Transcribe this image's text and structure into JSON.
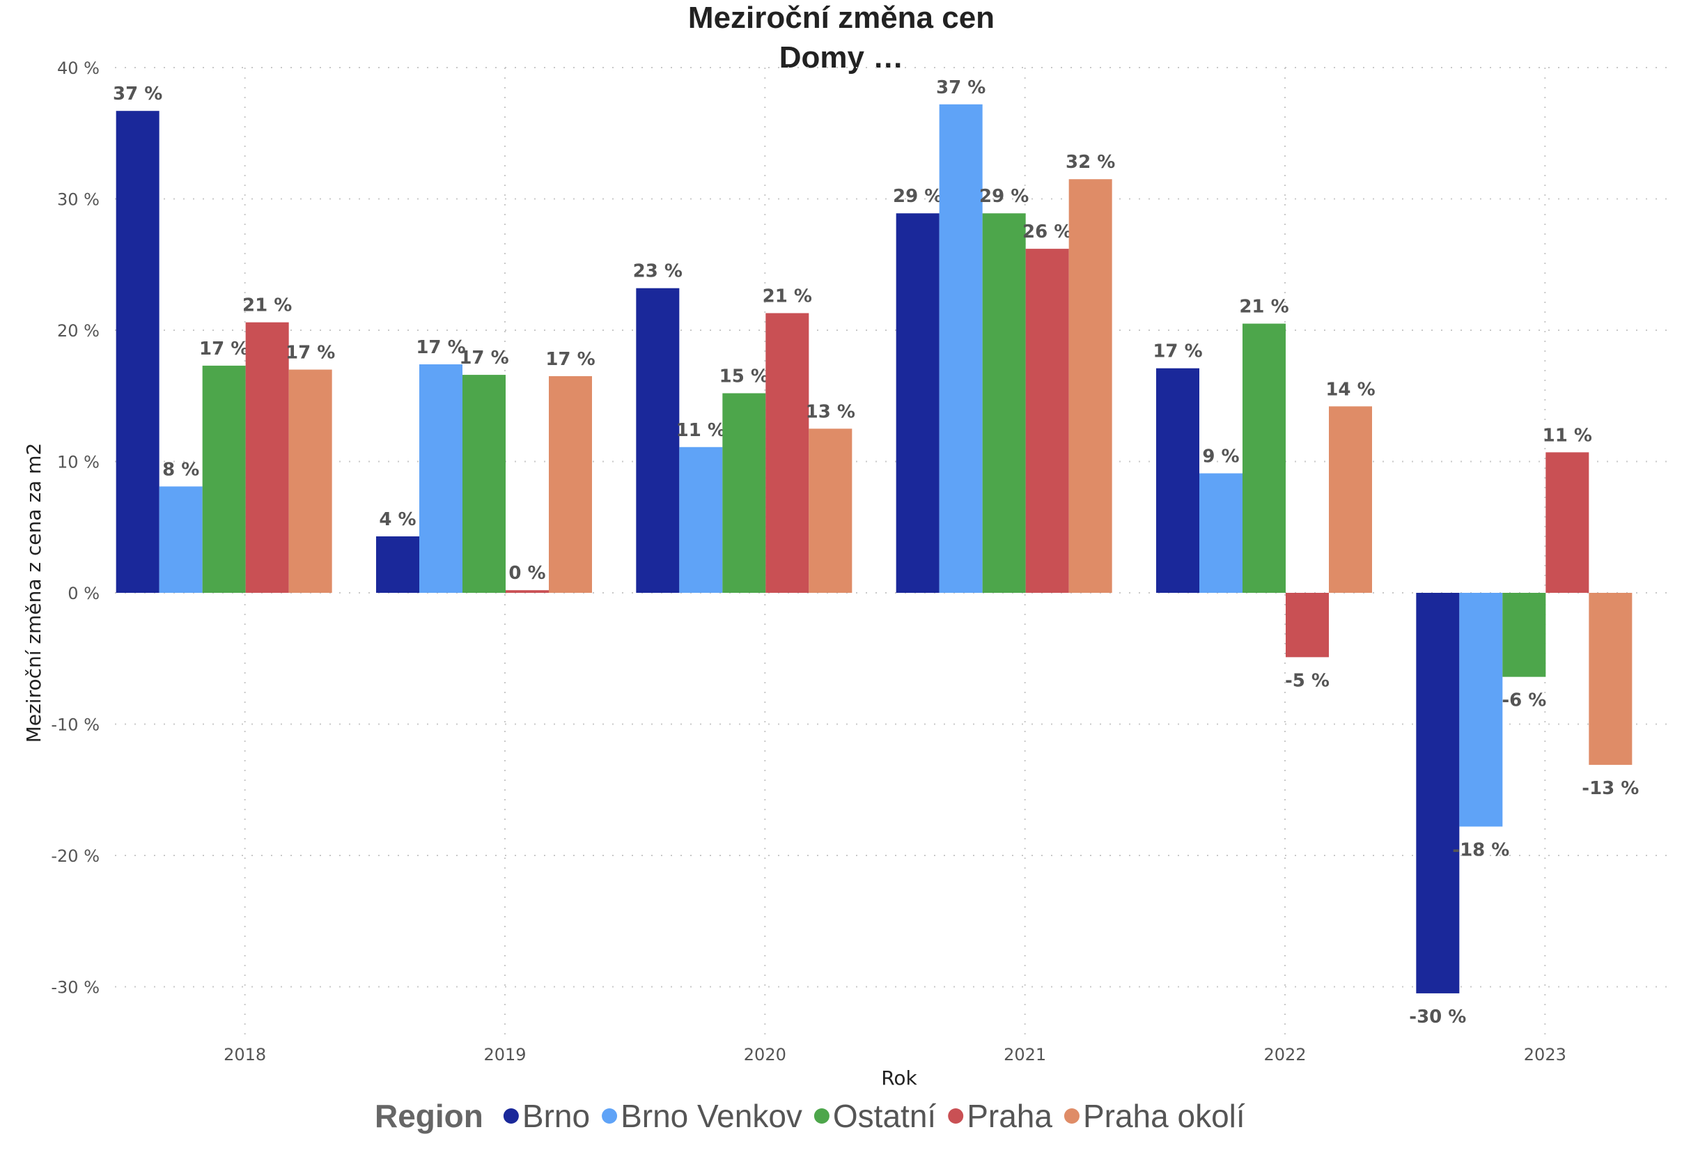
{
  "chart_data": {
    "type": "bar",
    "title": "Meziroční změna cen",
    "subtitle": "Domy …",
    "xlabel": "Rok",
    "ylabel": "Meziroční změna z cena za m2",
    "categories": [
      "2018",
      "2019",
      "2020",
      "2021",
      "2022",
      "2023"
    ],
    "ylim": [
      -35,
      40
    ],
    "yticks": [
      -30,
      -20,
      -10,
      0,
      10,
      20,
      30,
      40
    ],
    "ytick_labels": [
      "-30 %",
      "-20 %",
      "-10 %",
      "0 %",
      "10 %",
      "20 %",
      "30 %",
      "40 %"
    ],
    "value_suffix": " %",
    "grid": true,
    "legend_title": "Region",
    "legend_position": "bottom",
    "series": [
      {
        "name": "Brno",
        "color": "#1a289a",
        "values": [
          36.7,
          4.3,
          23.2,
          28.9,
          17.1,
          -30.5
        ]
      },
      {
        "name": "Brno Venkov",
        "color": "#5fa3f7",
        "values": [
          8.1,
          17.4,
          11.1,
          37.2,
          9.1,
          -17.8
        ]
      },
      {
        "name": "Ostatní",
        "color": "#4da64b",
        "values": [
          17.3,
          16.6,
          15.2,
          28.9,
          20.5,
          -6.4
        ]
      },
      {
        "name": "Praha",
        "color": "#c95054",
        "values": [
          20.6,
          0.2,
          21.3,
          26.2,
          -4.9,
          10.7
        ]
      },
      {
        "name": "Praha okolí",
        "color": "#df8c67",
        "values": [
          17.0,
          16.5,
          12.5,
          31.5,
          14.2,
          -13.1
        ]
      }
    ]
  }
}
